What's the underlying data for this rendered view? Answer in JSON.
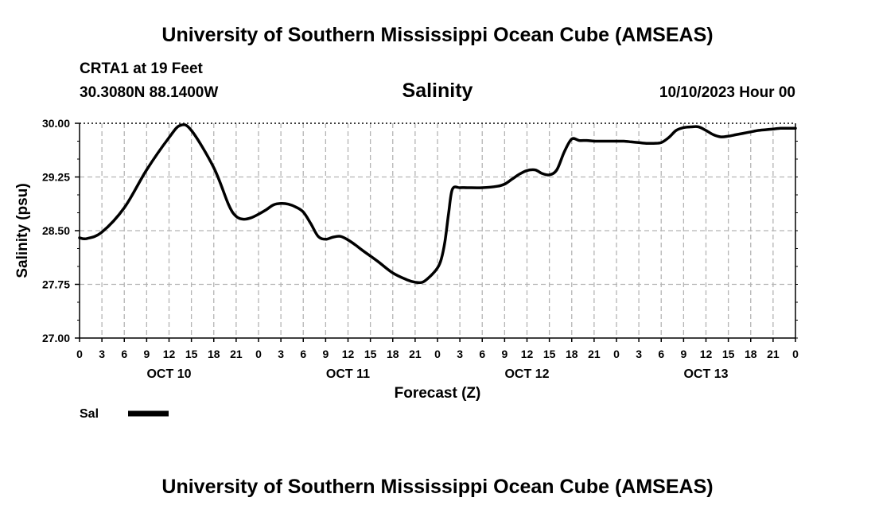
{
  "header": {
    "title": "University of Southern Mississippi Ocean Cube (AMSEAS)",
    "station": "CRTA1 at 19 Feet",
    "coords": "30.3080N  88.1400W",
    "run_time": "10/10/2023 Hour 00",
    "footer_title": "University of Southern Mississippi Ocean Cube (AMSEAS)"
  },
  "colors": {
    "line": "#000000",
    "grid": "#b4b4b4",
    "background": "#ffffff"
  },
  "chart_data": {
    "type": "line",
    "title": "Salinity",
    "xlabel": "Forecast (Z)",
    "ylabel": "Salinity (psu)",
    "ylim": [
      27.0,
      30.0
    ],
    "xlim": [
      0,
      96
    ],
    "yticks": [
      "27.00",
      "27.75",
      "28.50",
      "29.25",
      "30.00"
    ],
    "x_tick_labels": [
      "0",
      "3",
      "6",
      "9",
      "12",
      "15",
      "18",
      "21",
      "0",
      "3",
      "6",
      "9",
      "12",
      "15",
      "18",
      "21",
      "0",
      "3",
      "6",
      "9",
      "12",
      "15",
      "18",
      "21",
      "0",
      "3",
      "6",
      "9",
      "12",
      "15",
      "18",
      "21",
      "0"
    ],
    "day_labels": [
      {
        "label": "OCT 10",
        "hour": 12
      },
      {
        "label": "OCT 11",
        "hour": 36
      },
      {
        "label": "OCT 12",
        "hour": 60
      },
      {
        "label": "OCT 13",
        "hour": 84
      }
    ],
    "grid": true,
    "legend": {
      "label": "Sal",
      "position": "bottom-left"
    },
    "series": [
      {
        "name": "Sal",
        "x": [
          0,
          1,
          3,
          6,
          9,
          12,
          13.5,
          15,
          18,
          20,
          21,
          22,
          23,
          24,
          25,
          26,
          27,
          28,
          29,
          30,
          31,
          32,
          33,
          34,
          35,
          36,
          37,
          38,
          40,
          42,
          44,
          45,
          46,
          47,
          48,
          48.5,
          49,
          49.5,
          50,
          51,
          52,
          54,
          56,
          57,
          58,
          59,
          60,
          61,
          61.5,
          62,
          63,
          64,
          65,
          66,
          67,
          68,
          69,
          70,
          71,
          72,
          73,
          74,
          75,
          76,
          77,
          78,
          79,
          80,
          81,
          82,
          83,
          84,
          85,
          86,
          87,
          88,
          89,
          90,
          91,
          92,
          93,
          94,
          95,
          96
        ],
        "values": [
          28.4,
          28.39,
          28.48,
          28.82,
          29.35,
          29.8,
          29.97,
          29.9,
          29.38,
          28.86,
          28.7,
          28.66,
          28.68,
          28.73,
          28.79,
          28.86,
          28.88,
          28.87,
          28.83,
          28.76,
          28.6,
          28.42,
          28.38,
          28.41,
          28.42,
          28.37,
          28.3,
          28.22,
          28.07,
          27.91,
          27.81,
          27.78,
          27.78,
          27.86,
          27.98,
          28.1,
          28.35,
          28.75,
          29.08,
          29.1,
          29.1,
          29.1,
          29.12,
          29.15,
          29.22,
          29.29,
          29.34,
          29.35,
          29.33,
          29.3,
          29.28,
          29.35,
          29.6,
          29.78,
          29.76,
          29.76,
          29.75,
          29.75,
          29.75,
          29.75,
          29.75,
          29.74,
          29.73,
          29.72,
          29.72,
          29.73,
          29.8,
          29.9,
          29.94,
          29.95,
          29.95,
          29.9,
          29.84,
          29.81,
          29.82,
          29.84,
          29.86,
          29.88,
          29.9,
          29.91,
          29.92,
          29.93,
          29.93,
          29.93
        ]
      }
    ]
  }
}
